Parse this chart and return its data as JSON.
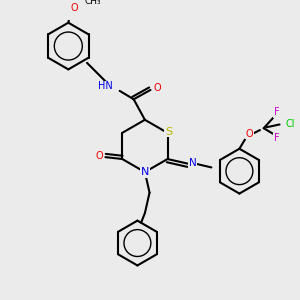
{
  "background_color": "#ebebeb",
  "bond_color": "#000000",
  "atom_colors": {
    "S": "#b8b800",
    "N": "#0000ee",
    "O": "#ee0000",
    "F": "#cc00cc",
    "Cl": "#00cc00",
    "C": "#000000"
  },
  "lw": 1.5,
  "fs": 7.0
}
